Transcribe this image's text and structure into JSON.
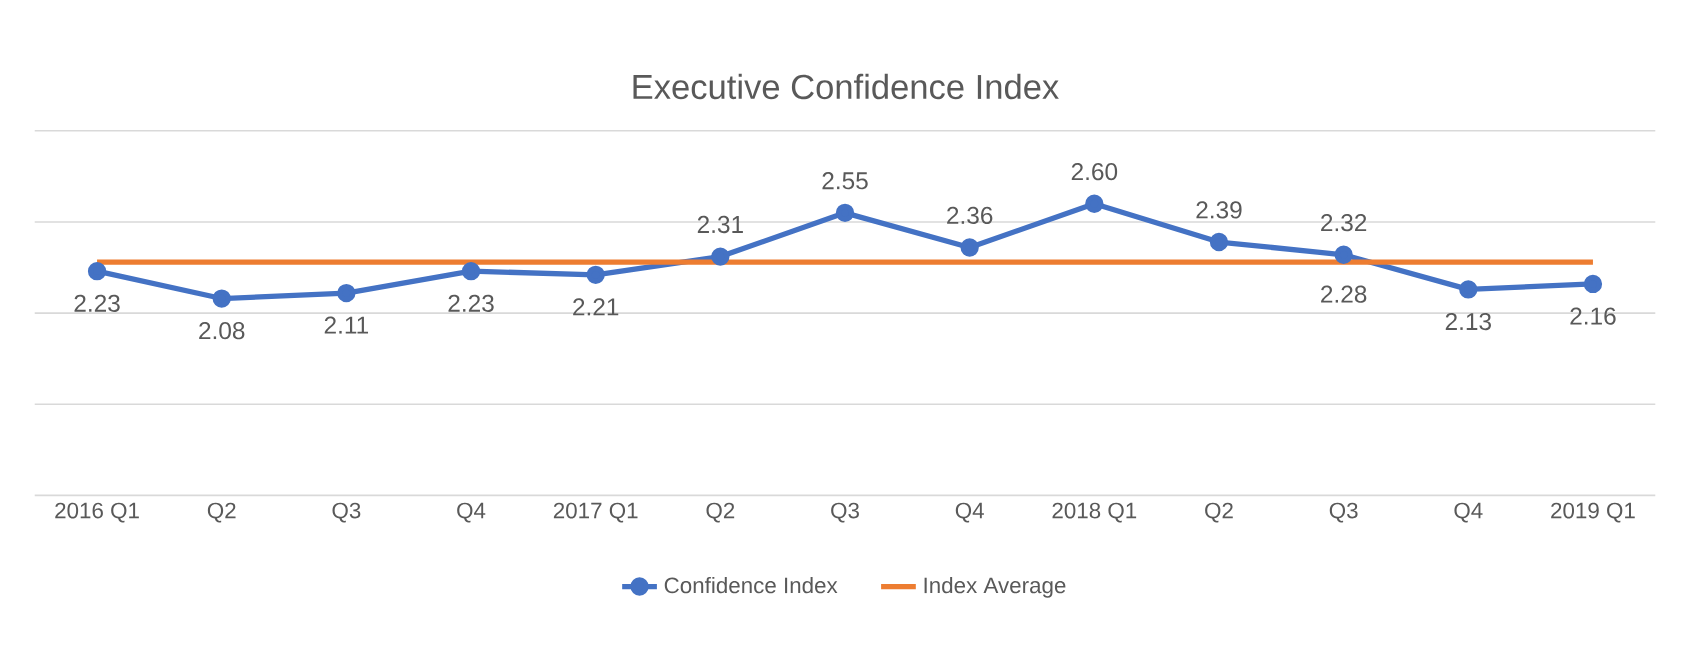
{
  "chart_data": {
    "type": "line",
    "title": "Executive Confidence Index",
    "categories": [
      "2016 Q1",
      "Q2",
      "Q3",
      "Q4",
      "2017 Q1",
      "Q2",
      "Q3",
      "Q4",
      "2018 Q1",
      "Q2",
      "Q3",
      "Q4",
      "2019 Q1"
    ],
    "series": [
      {
        "name": "Confidence Index",
        "color": "#4472c4",
        "marker": "circle",
        "value_labels": [
          "2.23",
          "2.08",
          "2.11",
          "2.23",
          "2.21",
          "2.31",
          "2.55",
          "2.36",
          "2.60",
          "2.39",
          "2.32",
          "2.13",
          "2.16"
        ],
        "values": [
          2.23,
          2.08,
          2.11,
          2.23,
          2.21,
          2.31,
          2.55,
          2.36,
          2.6,
          2.39,
          2.32,
          2.13,
          2.16
        ]
      },
      {
        "name": "Index Average",
        "color": "#ed7d31",
        "marker": "none",
        "values": [
          2.28,
          2.28,
          2.28,
          2.28,
          2.28,
          2.28,
          2.28,
          2.28,
          2.28,
          2.28,
          2.28,
          2.28,
          2.28
        ],
        "value_labels": [
          null,
          null,
          null,
          null,
          null,
          null,
          null,
          null,
          null,
          null,
          "2.28",
          null,
          null
        ]
      }
    ],
    "ylim": [
      1,
      3
    ],
    "yticks": [
      {
        "value": 1,
        "label": null
      },
      {
        "value": 1.5,
        "label": null
      },
      {
        "value": 2,
        "label": null
      },
      {
        "value": 2.5,
        "label": null
      },
      {
        "value": 3,
        "label": null
      }
    ],
    "tick_labels": "x",
    "grid": "y",
    "legend": "bottom"
  }
}
